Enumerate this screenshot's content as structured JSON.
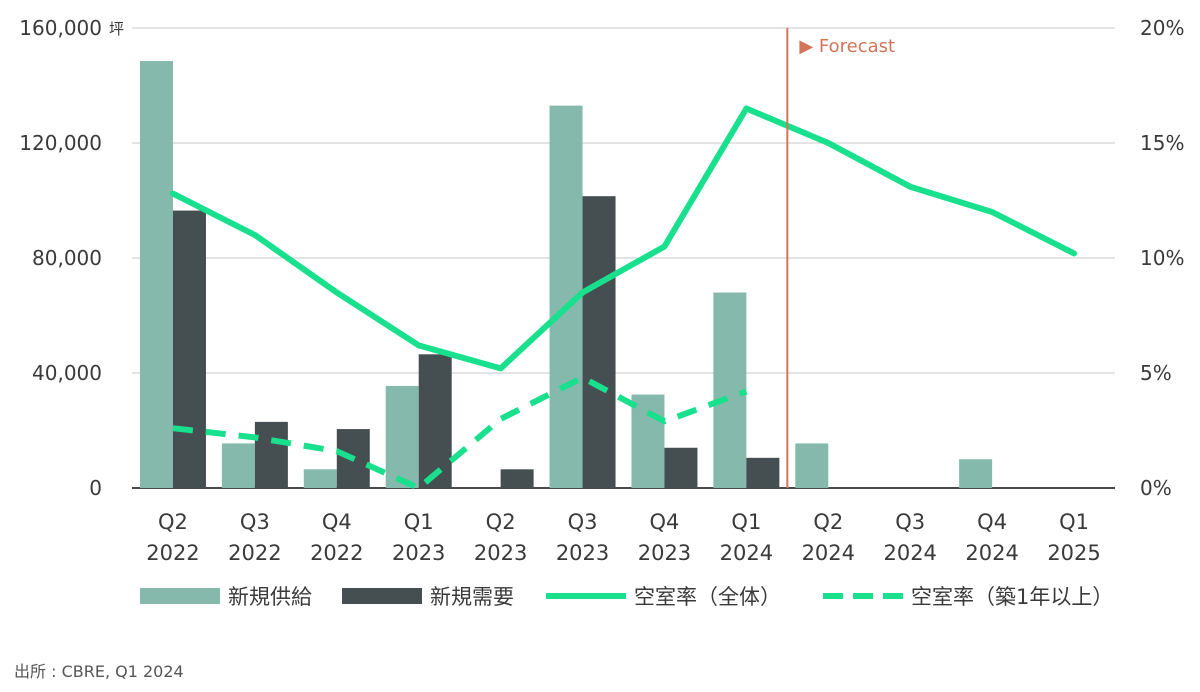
{
  "chart_data": {
    "type": "bar",
    "categories": [
      [
        "Q2",
        "2022"
      ],
      [
        "Q3",
        "2022"
      ],
      [
        "Q4",
        "2022"
      ],
      [
        "Q1",
        "2023"
      ],
      [
        "Q2",
        "2023"
      ],
      [
        "Q3",
        "2023"
      ],
      [
        "Q4",
        "2023"
      ],
      [
        "Q1",
        "2024"
      ],
      [
        "Q2",
        "2024"
      ],
      [
        "Q3",
        "2024"
      ],
      [
        "Q4",
        "2024"
      ],
      [
        "Q1",
        "2025"
      ]
    ],
    "left_axis": {
      "unit": "坪",
      "ylim": [
        0,
        160000
      ],
      "ticks": [
        0,
        40000,
        80000,
        120000,
        160000
      ],
      "tick_labels": [
        "0",
        "40,000",
        "80,000",
        "120,000",
        "160,000"
      ]
    },
    "right_axis": {
      "ylim": [
        0,
        20
      ],
      "ticks": [
        0,
        5,
        10,
        15,
        20
      ],
      "tick_labels": [
        "0%",
        "5%",
        "10%",
        "15%",
        "20%"
      ]
    },
    "series": [
      {
        "name": "新規供給",
        "kind": "bar",
        "axis": "left",
        "color": "#84b9ac",
        "values": [
          148500,
          15500,
          6500,
          35500,
          0,
          133000,
          32500,
          68000,
          15500,
          0,
          10000,
          0
        ]
      },
      {
        "name": "新規需要",
        "kind": "bar",
        "axis": "left",
        "color": "#454f51",
        "values": [
          96500,
          23000,
          20500,
          46500,
          6500,
          101500,
          14000,
          10500,
          0,
          0,
          0,
          0
        ]
      },
      {
        "name": "空室率（全体）",
        "kind": "line",
        "axis": "right",
        "color": "#18e08c",
        "dash": false,
        "values": [
          12.8,
          11.0,
          8.5,
          6.2,
          5.2,
          8.5,
          10.5,
          16.5,
          15.0,
          13.1,
          12.0,
          10.2
        ]
      },
      {
        "name": "空室率（築1年以上）",
        "kind": "line",
        "axis": "right",
        "color": "#18e08c",
        "dash": true,
        "values": [
          2.6,
          2.2,
          1.6,
          0.0,
          3.0,
          4.8,
          2.9,
          4.2,
          null,
          null,
          null,
          null
        ]
      }
    ],
    "forecast": {
      "label": "▶ Forecast",
      "between": [
        7,
        8
      ],
      "color": "#d2755a"
    },
    "grid": true,
    "legend_position": "bottom"
  },
  "source": "出所 : CBRE, Q1 2024"
}
